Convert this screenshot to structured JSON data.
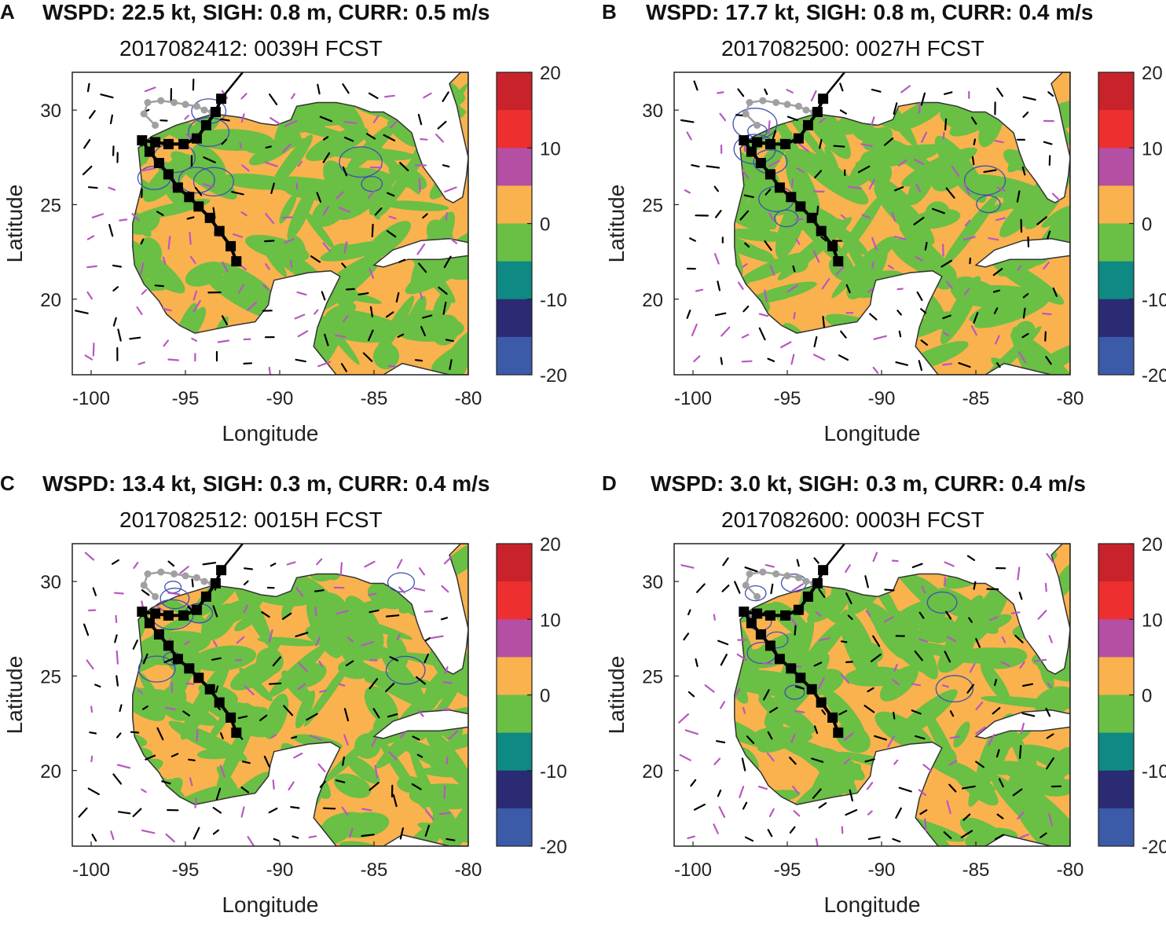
{
  "colors": {
    "ocean_pos": "#f9b24e",
    "ocean_neg": "#6abf45",
    "land": "#ffffff",
    "coast": "#333333",
    "track": "#000000",
    "obs_track": "#a0a0a0",
    "arrow_a": "#000000",
    "arrow_b": "#b857c2",
    "contour": "#3e4fb0"
  },
  "colorbar": {
    "ticks": [
      "20",
      "10",
      "0",
      "-10",
      "-20"
    ],
    "levels": [
      {
        "range": "15 to 20",
        "color": "#c8232b"
      },
      {
        "range": "10 to 15",
        "color": "#ee2f2f"
      },
      {
        "range": "5 to 10",
        "color": "#b44fa3"
      },
      {
        "range": "0 to 5",
        "color": "#f9b24e"
      },
      {
        "range": "-5 to 0",
        "color": "#6abf45"
      },
      {
        "range": "-10 to -5",
        "color": "#0e8984"
      },
      {
        "range": "-15 to -10",
        "color": "#2a2b72"
      },
      {
        "range": "-20 to -15",
        "color": "#3b5aa8"
      }
    ]
  },
  "axes": {
    "xlabel": "Longitude",
    "ylabel": "Latitude",
    "xticks": [
      "-100",
      "-95",
      "-90",
      "-85",
      "-80"
    ],
    "yticks": [
      "30",
      "25",
      "20"
    ],
    "xlim": [
      -101,
      -80
    ],
    "ylim": [
      16,
      32
    ]
  },
  "panels": [
    {
      "letter": "A",
      "title": "WSPD: 22.5 kt, SIGH: 0.8 m, CURR: 0.5 m/s",
      "subtitle": "2017082412: 0039H FCST"
    },
    {
      "letter": "B",
      "title": "WSPD: 17.7 kt, SIGH: 0.8 m, CURR: 0.4 m/s",
      "subtitle": "2017082500: 0027H FCST"
    },
    {
      "letter": "C",
      "title": "WSPD: 13.4 kt, SIGH: 0.3 m, CURR: 0.4 m/s",
      "subtitle": "2017082512: 0015H FCST"
    },
    {
      "letter": "D",
      "title": "WSPD: 3.0 kt, SIGH: 0.3 m, CURR: 0.4 m/s",
      "subtitle": "2017082600: 0003H FCST"
    }
  ],
  "storm_track": {
    "forecast_points": [
      [
        -92.3,
        22.0
      ],
      [
        -92.6,
        22.8
      ],
      [
        -93.2,
        23.6
      ],
      [
        -93.7,
        24.3
      ],
      [
        -94.3,
        24.9
      ],
      [
        -94.8,
        25.4
      ],
      [
        -95.4,
        25.9
      ],
      [
        -95.9,
        26.6
      ],
      [
        -96.4,
        27.2
      ],
      [
        -96.9,
        27.8
      ],
      [
        -97.3,
        28.4
      ],
      [
        -96.6,
        28.3
      ],
      [
        -95.9,
        28.2
      ],
      [
        -95.1,
        28.2
      ],
      [
        -94.4,
        28.5
      ],
      [
        -93.9,
        29.2
      ],
      [
        -93.4,
        29.9
      ],
      [
        -93.1,
        30.6
      ]
    ],
    "obs_points": [
      [
        -96.6,
        29.2
      ],
      [
        -97.2,
        29.8
      ],
      [
        -97.0,
        30.4
      ],
      [
        -96.3,
        30.5
      ],
      [
        -95.6,
        30.4
      ],
      [
        -95.0,
        30.3
      ],
      [
        -94.4,
        30.2
      ],
      [
        -94.0,
        30.0
      ],
      [
        -93.6,
        29.9
      ]
    ]
  }
}
